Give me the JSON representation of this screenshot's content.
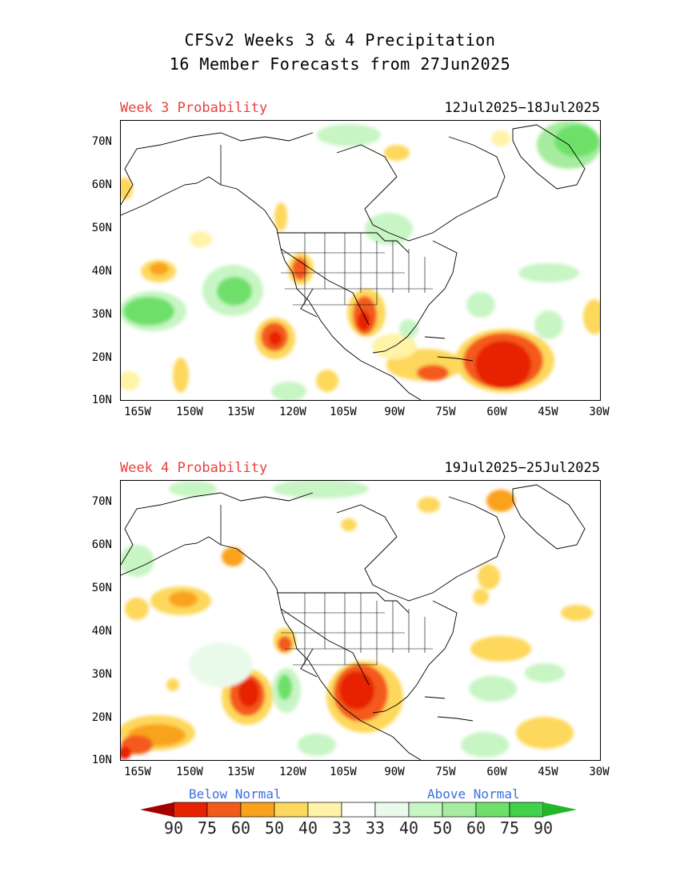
{
  "header": {
    "line1": "CFSv2 Weeks 3 & 4 Precipitation",
    "line2": "16 Member Forecasts from 27Jun2025"
  },
  "panels": [
    {
      "label": "Week 3 Probability",
      "dates": "12Jul2025−18Jul2025",
      "lat_ticks": [
        "70N",
        "60N",
        "50N",
        "40N",
        "30N",
        "20N",
        "10N"
      ],
      "lon_ticks": [
        "165W",
        "150W",
        "135W",
        "120W",
        "105W",
        "90W",
        "75W",
        "60W",
        "45W",
        "30W"
      ]
    },
    {
      "label": "Week 4 Probability",
      "dates": "19Jul2025−25Jul2025",
      "lat_ticks": [
        "70N",
        "60N",
        "50N",
        "40N",
        "30N",
        "20N",
        "10N"
      ],
      "lon_ticks": [
        "165W",
        "150W",
        "135W",
        "120W",
        "105W",
        "90W",
        "75W",
        "60W",
        "45W",
        "30W"
      ]
    }
  ],
  "legend": {
    "below_label": "Below Normal",
    "above_label": "Above Normal",
    "values": [
      "90",
      "75",
      "60",
      "50",
      "40",
      "33",
      "33",
      "40",
      "50",
      "60",
      "75",
      "90"
    ],
    "colors_below": [
      "#a40000",
      "#e62200",
      "#f45a1a",
      "#f9a21c",
      "#fdd85c",
      "#fff3a8"
    ],
    "colors_above": [
      "#eafaea",
      "#c8f5c4",
      "#a5ec9e",
      "#6ee06a",
      "#3fd24a",
      "#25b52a"
    ]
  },
  "colors": {
    "title_red": "#e8413c",
    "below_blue": "#3a6fe0",
    "above_blue": "#3a6fe0"
  }
}
